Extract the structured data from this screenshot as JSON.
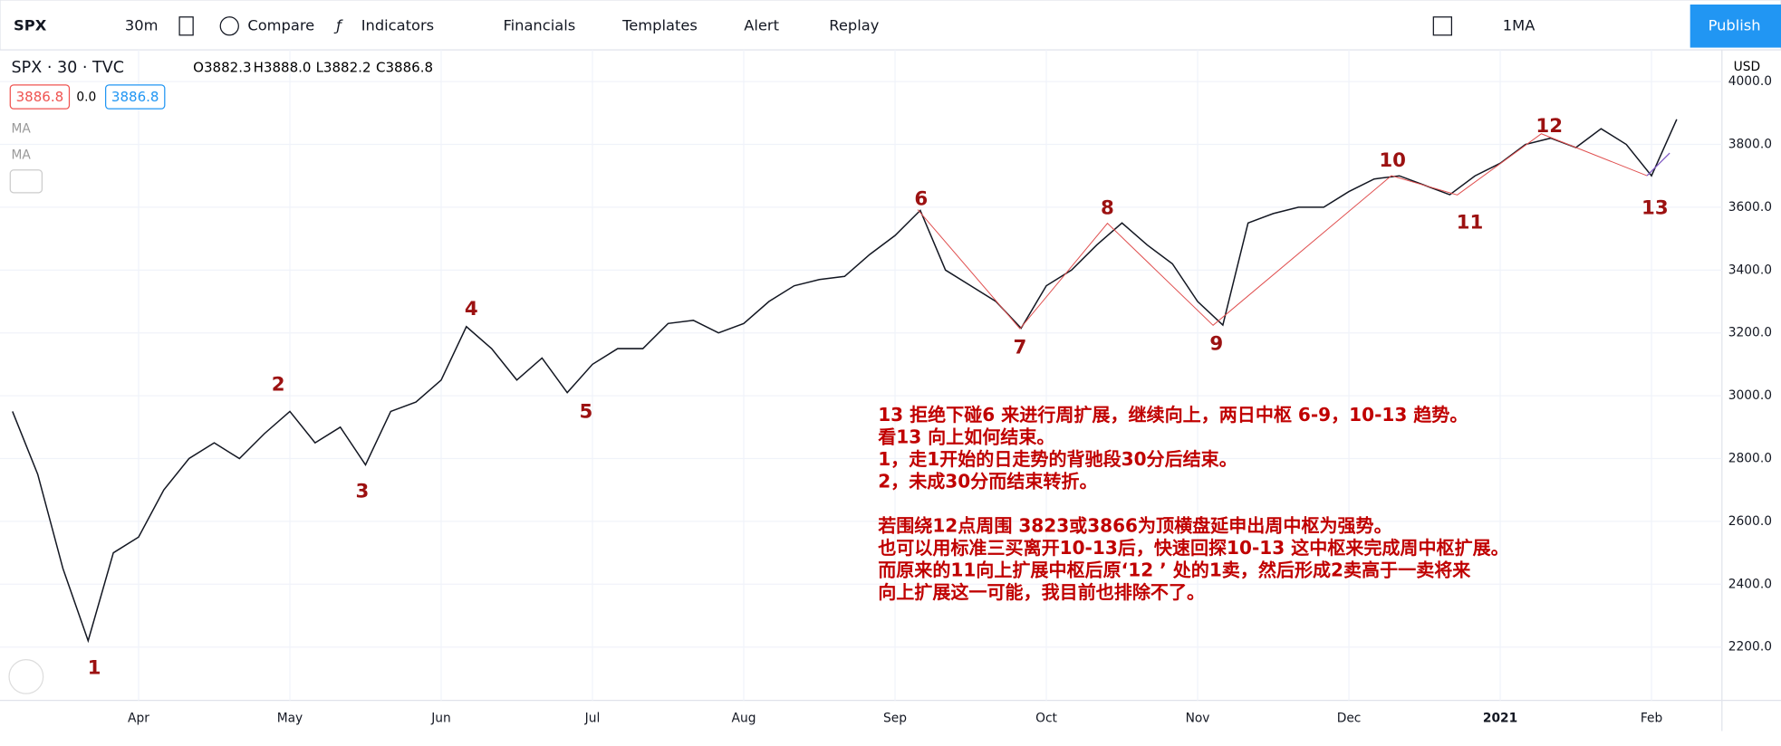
{
  "toolbar": {
    "symbol": "SPX",
    "interval": "30m",
    "compare": "Compare",
    "indicators": "Indicators",
    "financials": "Financials",
    "templates": "Templates",
    "alert": "Alert",
    "replay": "Replay",
    "layout": "1MA",
    "publish": "Publish"
  },
  "legend": {
    "title": "SPX · 30 · TVC",
    "ohlc": [
      "O3882.3",
      "H3888.0",
      "L3882.2",
      "C3886.8"
    ],
    "bid": "3886.8",
    "spread": "0.0",
    "ask": "3886.8",
    "ma": [
      "MA",
      "MA"
    ]
  },
  "chart_data": {
    "type": "line",
    "currency": "USD",
    "categories": [
      null,
      null,
      null,
      null,
      null,
      "Apr",
      null,
      null,
      null,
      null,
      null,
      "May",
      null,
      null,
      null,
      null,
      null,
      "Jun",
      null,
      null,
      null,
      null,
      null,
      "Jul",
      null,
      null,
      null,
      null,
      null,
      "Aug",
      null,
      null,
      null,
      null,
      null,
      "Sep",
      null,
      null,
      null,
      null,
      null,
      "Oct",
      null,
      null,
      null,
      null,
      null,
      "Nov",
      null,
      null,
      null,
      null,
      null,
      "Dec",
      null,
      null,
      null,
      null,
      null,
      "2021",
      null,
      null,
      null,
      null,
      null,
      "Feb",
      null
    ],
    "series": [
      {
        "name": "SPX",
        "color": "#131722",
        "values": [
          2950,
          2750,
          2450,
          2220,
          2500,
          2550,
          2700,
          2800,
          2850,
          2800,
          2880,
          2950,
          2850,
          2900,
          2780,
          2950,
          2980,
          3050,
          3220,
          3150,
          3050,
          3120,
          3010,
          3100,
          3150,
          3150,
          3230,
          3240,
          3200,
          3230,
          3300,
          3350,
          3370,
          3380,
          3450,
          3510,
          3590,
          3400,
          3350,
          3300,
          3215,
          3350,
          3400,
          3480,
          3550,
          3480,
          3420,
          3300,
          3225,
          3550,
          3580,
          3600,
          3600,
          3650,
          3690,
          3700,
          3670,
          3640,
          3700,
          3740,
          3800,
          3820,
          3790,
          3850,
          3800,
          3700,
          3880
        ]
      }
    ],
    "ylim": [
      2030,
      4101
    ],
    "yticks": [
      {
        "value": 2200,
        "label": "2200.0"
      },
      {
        "value": 2400,
        "label": "2400.0"
      },
      {
        "value": 2600,
        "label": "2600.0"
      },
      {
        "value": 2800,
        "label": "2800.0"
      },
      {
        "value": 3000,
        "label": "3000.0"
      },
      {
        "value": 3200,
        "label": "3200.0"
      },
      {
        "value": 3400,
        "label": "3400.0"
      },
      {
        "value": 3600,
        "label": "3600.0"
      },
      {
        "value": 3800,
        "label": "3800.0"
      },
      {
        "value": 4000,
        "label": "4000.0"
      }
    ],
    "grid": true,
    "wave_labels": [
      "1",
      "2",
      "3",
      "4",
      "5",
      "6",
      "7",
      "8",
      "9",
      "10",
      "11",
      "12",
      "13"
    ],
    "annotation": [
      "13 拒绝下碰6 来进行周扩展，继续向上，两日中枢 6-9，10-13 趋势。",
      "看13 向上如何结束。",
      "1，走1开始的日走势的背驰段30分后结束。",
      "2，未成30分而结束转折。",
      "",
      "若围绕12点周围  3823或3866为顶横盘延申出周中枢为强势。",
      "也可以用标准三买离开10-13后，快速回探10-13 这中枢来完成周中枢扩展。",
      "而原来的11向上扩展中枢后原‘12 ’ 处的1卖，然后形成2卖高于一卖将来",
      "向上扩展这一可能，我目前也排除不了。"
    ]
  }
}
